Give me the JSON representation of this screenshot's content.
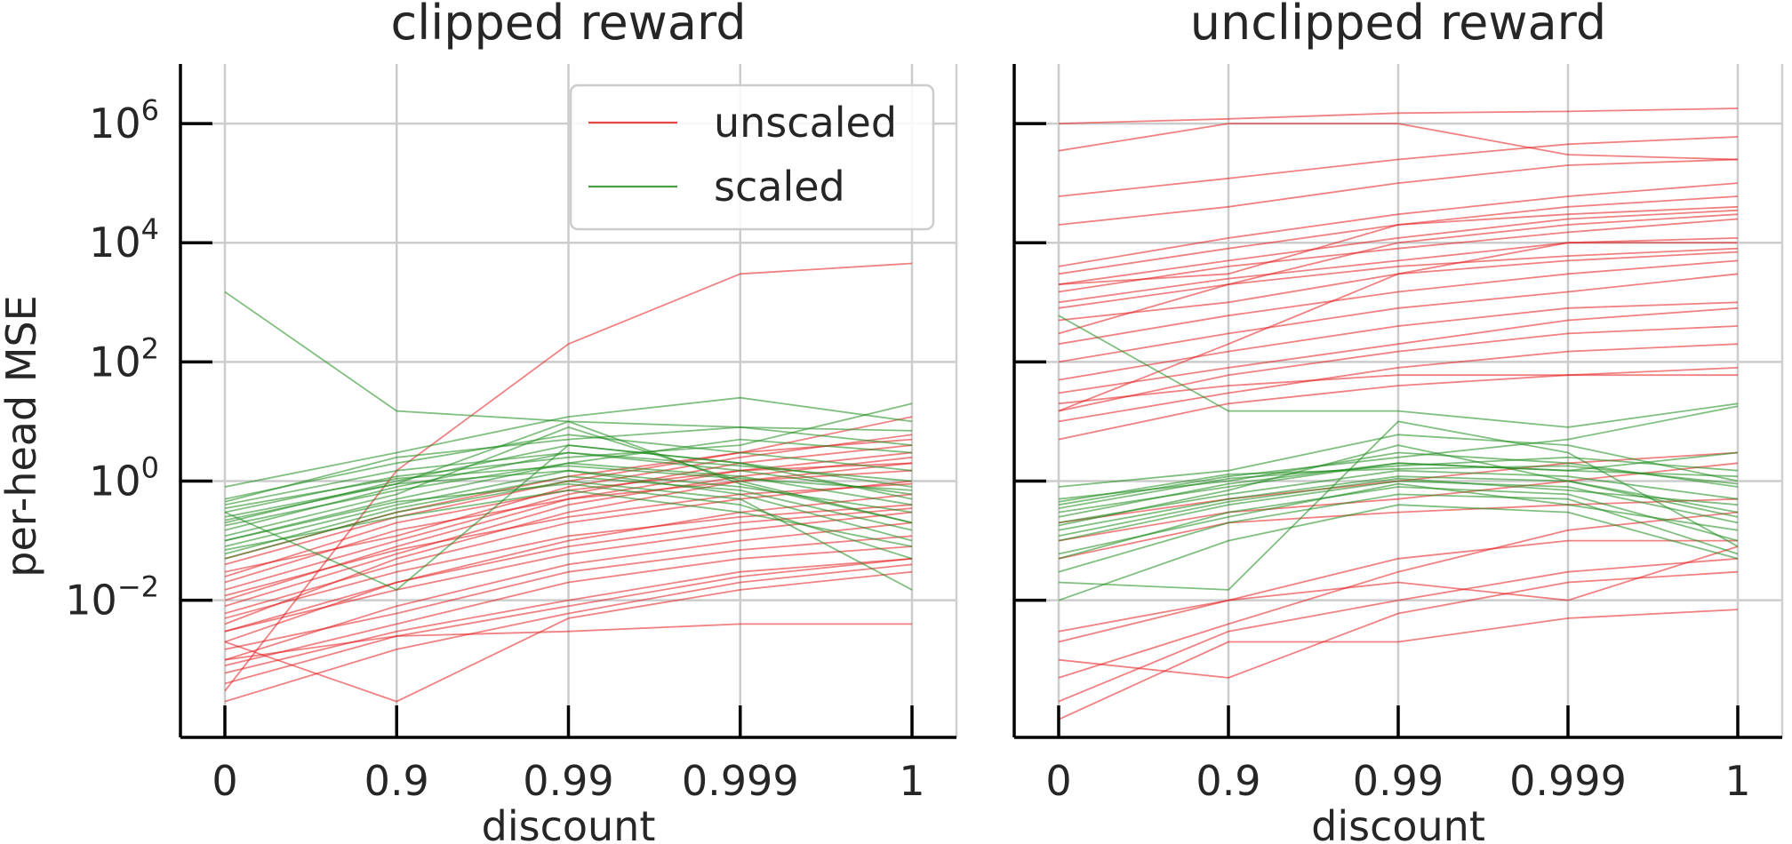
{
  "chart_data": [
    {
      "type": "line",
      "title": "clipped reward",
      "xlabel": "discount",
      "ylabel": "per-head MSE",
      "x_categories": [
        "0",
        "0.9",
        "0.99",
        "0.999",
        "1"
      ],
      "y_scale": "log",
      "ylim": [
        5e-05,
        10000000
      ],
      "y_ticks": [
        {
          "value": 0.01,
          "base": "10",
          "exp": "−2"
        },
        {
          "value": 1,
          "base": "10",
          "exp": "0"
        },
        {
          "value": 100,
          "base": "10",
          "exp": "2"
        },
        {
          "value": 10000,
          "base": "10",
          "exp": "4"
        },
        {
          "value": 1000000,
          "base": "10",
          "exp": "6"
        }
      ],
      "grid": true,
      "legend": {
        "placement": "top-right",
        "entries": [
          {
            "label": "unscaled",
            "color": "#e31a1c"
          },
          {
            "label": "scaled",
            "color": "#1a8a1a"
          }
        ]
      },
      "series": [
        {
          "group": "unscaled",
          "color": "#e31a1c",
          "lines": [
            [
              0.0003,
              1.5,
              200,
              3000,
              4500
            ],
            [
              0.03,
              0.12,
              0.8,
              2.5,
              6
            ],
            [
              0.01,
              0.08,
              0.5,
              1.5,
              3
            ],
            [
              0.004,
              0.05,
              0.3,
              1,
              2
            ],
            [
              0.02,
              0.15,
              0.5,
              1,
              1.5
            ],
            [
              0.006,
              0.04,
              0.2,
              0.5,
              1
            ],
            [
              0.002,
              0.02,
              0.1,
              0.3,
              0.6
            ],
            [
              0.005,
              0.03,
              0.12,
              0.25,
              0.4
            ],
            [
              0.003,
              0.015,
              0.06,
              0.15,
              0.3
            ],
            [
              0.001,
              0.008,
              0.04,
              0.1,
              0.2
            ],
            [
              0.0015,
              0.006,
              0.03,
              0.07,
              0.12
            ],
            [
              0.0008,
              0.004,
              0.02,
              0.05,
              0.08
            ],
            [
              0.0004,
              0.0025,
              0.008,
              0.025,
              0.05
            ],
            [
              0.002,
              0.0002,
              0.005,
              0.015,
              0.03
            ],
            [
              0.001,
              0.0025,
              0.003,
              0.004,
              0.004
            ],
            [
              0.05,
              0.3,
              1.2,
              3,
              5
            ],
            [
              0.015,
              0.1,
              0.6,
              2,
              4
            ],
            [
              0.008,
              0.06,
              0.4,
              1.2,
              2.5
            ],
            [
              0.012,
              0.07,
              0.25,
              0.6,
              0.9
            ],
            [
              0.025,
              0.2,
              0.7,
              1.5,
              2
            ],
            [
              0.003,
              0.02,
              0.08,
              0.2,
              0.35
            ],
            [
              0.0006,
              0.003,
              0.01,
              0.03,
              0.05
            ],
            [
              0.0002,
              0.0015,
              0.006,
              0.02,
              0.04
            ],
            [
              0.04,
              0.25,
              1,
              3,
              12
            ]
          ]
        },
        {
          "group": "scaled",
          "color": "#1a8a1a",
          "lines": [
            [
              1500,
              15,
              10,
              8,
              7
            ],
            [
              0.8,
              3,
              12,
              25,
              10
            ],
            [
              0.3,
              0.015,
              4,
              2,
              0.5
            ],
            [
              0.5,
              2,
              6,
              3,
              1.5
            ],
            [
              0.2,
              1,
              4,
              2,
              0.8
            ],
            [
              0.15,
              0.8,
              3,
              1.5,
              0.6
            ],
            [
              0.1,
              0.5,
              2,
              1.2,
              0.4
            ],
            [
              0.08,
              0.4,
              1.5,
              0.8,
              0.3
            ],
            [
              0.3,
              1.2,
              2.5,
              4,
              20
            ],
            [
              0.12,
              0.6,
              8,
              1,
              0.2
            ],
            [
              0.25,
              0.9,
              1.5,
              0.6,
              0.1
            ],
            [
              0.05,
              0.3,
              1,
              0.5,
              0.015
            ],
            [
              0.4,
              1.5,
              3,
              1.8,
              1
            ],
            [
              0.18,
              0.7,
              2,
              5,
              3
            ],
            [
              0.06,
              0.35,
              1.2,
              0.7,
              0.15
            ],
            [
              0.35,
              1.1,
              1.8,
              1.1,
              0.7
            ],
            [
              0.1,
              0.45,
              0.9,
              0.4,
              0.05
            ],
            [
              0.22,
              0.9,
              10,
              0.9,
              0.2
            ],
            [
              0.07,
              0.25,
              0.7,
              0.3,
              0.08
            ],
            [
              0.45,
              2.5,
              5,
              8,
              4
            ]
          ]
        }
      ]
    },
    {
      "type": "line",
      "title": "unclipped reward",
      "xlabel": "discount",
      "x_categories": [
        "0",
        "0.9",
        "0.99",
        "0.999",
        "1"
      ],
      "y_scale": "log",
      "ylim": [
        5e-05,
        10000000
      ],
      "grid": true,
      "series": [
        {
          "group": "unscaled",
          "color": "#e31a1c",
          "lines": [
            [
              1000000,
              1200000,
              1500000,
              1600000,
              1800000
            ],
            [
              350000,
              1000000,
              1000000,
              300000,
              250000
            ],
            [
              60000,
              120000,
              250000,
              450000,
              600000
            ],
            [
              20000,
              40000,
              100000,
              200000,
              250000
            ],
            [
              4000,
              12000,
              30000,
              60000,
              100000
            ],
            [
              3000,
              8000,
              20000,
              40000,
              60000
            ],
            [
              2000,
              5000,
              12000,
              25000,
              35000
            ],
            [
              1500,
              4000,
              8000,
              15000,
              25000
            ],
            [
              1000,
              2500,
              5000,
              10000,
              12000
            ],
            [
              800,
              2000,
              4000,
              6000,
              8000
            ],
            [
              500,
              1000,
              3000,
              5000,
              7000
            ],
            [
              200,
              600,
              1500,
              3000,
              5000
            ],
            [
              100,
              300,
              800,
              1500,
              3000
            ],
            [
              50,
              150,
              400,
              800,
              1000
            ],
            [
              30,
              80,
              200,
              500,
              800
            ],
            [
              15,
              60,
              150,
              300,
              400
            ],
            [
              10,
              30,
              80,
              150,
              200
            ],
            [
              5,
              20,
              40,
              60,
              80
            ],
            [
              20,
              40,
              60,
              60,
              60
            ],
            [
              2000,
              3000,
              20000,
              30000,
              40000
            ],
            [
              300,
              2000,
              10000,
              20000,
              30000
            ],
            [
              15,
              200,
              3000,
              10000,
              10000
            ],
            [
              0.0005,
              0.004,
              0.03,
              0.15,
              0.3
            ],
            [
              0.002,
              0.01,
              0.05,
              0.1,
              0.1
            ],
            [
              0.0002,
              0.003,
              0.01,
              0.03,
              0.05
            ],
            [
              0.001,
              0.0005,
              0.006,
              0.02,
              0.03
            ],
            [
              0.0001,
              0.002,
              0.002,
              0.005,
              0.007
            ],
            [
              0.003,
              0.01,
              0.02,
              0.01,
              0.08
            ],
            [
              0.1,
              0.3,
              0.5,
              1,
              2
            ],
            [
              0.2,
              0.5,
              1,
              2,
              3
            ],
            [
              0.05,
              0.2,
              0.3,
              0.4,
              0.5
            ]
          ]
        },
        {
          "group": "scaled",
          "color": "#1a8a1a",
          "lines": [
            [
              600,
              15,
              15,
              8,
              20
            ],
            [
              0.8,
              1.5,
              6,
              4,
              1
            ],
            [
              0.5,
              1,
              3,
              2,
              0.8
            ],
            [
              0.3,
              0.8,
              2,
              1.5,
              1.2
            ],
            [
              0.2,
              0.6,
              1.5,
              1.2,
              0.5
            ],
            [
              0.15,
              0.5,
              1.2,
              1,
              0.3
            ],
            [
              0.1,
              0.4,
              1,
              0.8,
              0.2
            ],
            [
              0.05,
              0.3,
              0.8,
              0.6,
              0.1
            ],
            [
              0.03,
              0.2,
              0.6,
              0.5,
              0.06
            ],
            [
              0.01,
              0.1,
              0.4,
              0.3,
              0.05
            ],
            [
              0.02,
              0.015,
              10,
              3,
              0.08
            ],
            [
              0.4,
              1.2,
              2.5,
              5,
              18
            ],
            [
              0.25,
              0.9,
              2,
              1.5,
              3
            ],
            [
              0.35,
              1.1,
              1.8,
              2.5,
              1.5
            ],
            [
              0.12,
              0.45,
              1.1,
              0.7,
              0.4
            ],
            [
              0.06,
              0.25,
              0.9,
              0.4,
              0.15
            ],
            [
              0.45,
              1.3,
              1.6,
              1.8,
              0.9
            ],
            [
              0.18,
              0.7,
              4,
              1,
              0.25
            ]
          ]
        }
      ]
    }
  ]
}
